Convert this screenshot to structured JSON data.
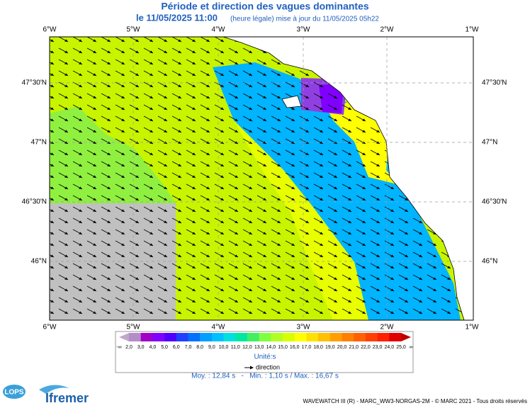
{
  "header": {
    "title": "Période et direction des vagues dominantes",
    "date": "le 11/05/2025 11:00",
    "update": "(heure légale) mise à jour du 11/05/2025 05h22"
  },
  "map": {
    "lon_labels": [
      "6°W",
      "5°W",
      "4°W",
      "3°W",
      "2°W",
      "1°W"
    ],
    "lat_labels": [
      "47°30'N",
      "47°N",
      "46°30'N",
      "46°N"
    ]
  },
  "colorbar": {
    "labels": [
      "-∞",
      "2,0",
      "3,0",
      "4,0",
      "5,0",
      "6,0",
      "7,0",
      "8,0",
      "9,0",
      "10,0",
      "11,0",
      "12,0",
      "13,0",
      "14,0",
      "15,0",
      "16,0",
      "17,0",
      "18,0",
      "19,0",
      "20,0",
      "21,0",
      "22,0",
      "23,0",
      "24,0",
      "25,0",
      "∞"
    ],
    "colors": [
      "#c0a8c8",
      "#b48cc8",
      "#a000c8",
      "#8000ff",
      "#5000ff",
      "#2040ff",
      "#0070ff",
      "#00a0ff",
      "#00c0ff",
      "#00e0e0",
      "#00e8a0",
      "#40f060",
      "#80ff40",
      "#b0ff20",
      "#d8ff00",
      "#ffff00",
      "#ffe000",
      "#ffc000",
      "#ffa000",
      "#ff8000",
      "#ff6000",
      "#ff4000",
      "#ff2000",
      "#e00000",
      "#c00000"
    ],
    "unit": "Unité:s",
    "legend": "direction",
    "stats": "Moy. : 12,84 s   -   Min. : 1,10 s / Max. : 16,67 s"
  },
  "footer": {
    "credits": "WAVEWATCH III (R) - MARC_WW3-NORGAS-2M - © MARC 2021 - Tous droits réservés",
    "logo1": "LOPS",
    "logo2": "Ifremer"
  }
}
